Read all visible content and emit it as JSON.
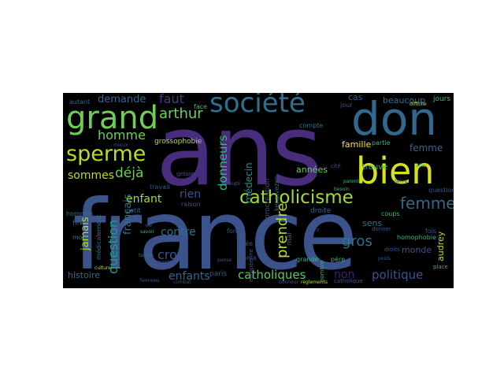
{
  "words": [
    {
      "text": "ans",
      "color": "#472d7b"
    },
    {
      "text": "france",
      "color": "#3b528b"
    },
    {
      "text": "don",
      "color": "#31688e"
    },
    {
      "text": "bien",
      "color": "#d8e219"
    },
    {
      "text": "société",
      "color": "#2c728e"
    },
    {
      "text": "grand",
      "color": "#6ece58"
    },
    {
      "text": "sperme",
      "color": "#b5de2b"
    },
    {
      "text": "catholicisme",
      "color": "#a0da39"
    },
    {
      "text": "catholiques",
      "color": "#5ec962"
    },
    {
      "text": "femmes",
      "color": "#31688e"
    },
    {
      "text": "politique",
      "color": "#3b528b"
    },
    {
      "text": "enfants",
      "color": "#31688e"
    },
    {
      "text": "gros",
      "color": "#2c728e"
    },
    {
      "text": "crois",
      "color": "#3b528b"
    },
    {
      "text": "arthur",
      "color": "#6ece58"
    },
    {
      "text": "faut",
      "color": "#443983"
    },
    {
      "text": "homme",
      "color": "#6ece58"
    },
    {
      "text": "demande",
      "color": "#31688e"
    },
    {
      "text": "enfant",
      "color": "#a0da39"
    },
    {
      "text": "sommes",
      "color": "#b5de2b"
    },
    {
      "text": "déjà",
      "color": "#6ece58"
    },
    {
      "text": "rien",
      "color": "#3b528b"
    },
    {
      "text": "contre",
      "color": "#2c728e"
    },
    {
      "text": "non",
      "color": "#481f70"
    },
    {
      "text": "sens",
      "color": "#2c728e"
    },
    {
      "text": "femme",
      "color": "#31688e"
    },
    {
      "text": "famille",
      "color": "#fde725"
    },
    {
      "text": "beaucoup",
      "color": "#2c728e"
    },
    {
      "text": "cas",
      "color": "#3b528b"
    },
    {
      "text": "jours",
      "color": "#35b779"
    },
    {
      "text": "années",
      "color": "#6ece58"
    },
    {
      "text": "prendre",
      "color": "#b5de2b"
    },
    {
      "text": "donneurs",
      "color": "#35b779"
    },
    {
      "text": "médecin",
      "color": "#21918c"
    },
    {
      "text": "question",
      "color": "#1f9e89"
    },
    {
      "text": "jamais",
      "color": "#b5de2b"
    },
    {
      "text": "français",
      "color": "#2c728e"
    },
    {
      "text": "audrey",
      "color": "#b5de2b"
    },
    {
      "text": "histoire",
      "color": "#31688e"
    },
    {
      "text": "monde",
      "color": "#3b528b"
    },
    {
      "text": "homophobie",
      "color": "#35b779"
    },
    {
      "text": "grossophobie",
      "color": "#b5de2b"
    },
    {
      "text": "trouve",
      "color": "#35b779"
    },
    {
      "text": "partie",
      "color": "#35b779"
    },
    {
      "text": "compte",
      "color": "#2c728e"
    },
    {
      "text": "coups",
      "color": "#35b779"
    },
    {
      "text": "fois",
      "color": "#3b528b"
    },
    {
      "text": "droite",
      "color": "#31688e"
    },
    {
      "text": "paris",
      "color": "#3b528b"
    },
    {
      "text": "force",
      "color": "#3b528b"
    },
    {
      "text": "mal",
      "color": "#3b528b"
    },
    {
      "text": "questions",
      "color": "#3b528b"
    },
    {
      "text": "fin",
      "color": "#3b528b"
    },
    {
      "text": "autant",
      "color": "#31688e"
    },
    {
      "text": "jour",
      "color": "#3b528b"
    },
    {
      "text": "face",
      "color": "#35b779"
    },
    {
      "text": "hommes",
      "color": "#2c728e"
    },
    {
      "text": "petit",
      "color": "#2c728e"
    },
    {
      "text": "mois",
      "color": "#2c728e"
    },
    {
      "text": "travail",
      "color": "#3b528b"
    },
    {
      "text": "raison",
      "color": "#3b528b"
    },
    {
      "text": "grande",
      "color": "#35b779"
    },
    {
      "text": "père",
      "color": "#35b779"
    },
    {
      "text": "coupl",
      "color": "#3b528b"
    },
    {
      "text": "procréation",
      "color": "#3b528b"
    },
    {
      "text": "kenalvezen",
      "color": "#31688e"
    },
    {
      "text": "médicalement",
      "color": "#2c728e"
    },
    {
      "text": "idée",
      "color": "#3b528b"
    },
    {
      "text": "pma",
      "color": "#3b528b"
    },
    {
      "text": "couples",
      "color": "#3b528b"
    },
    {
      "text": "grosse",
      "color": "#3b528b"
    },
    {
      "text": "catholique",
      "color": "#3b528b"
    },
    {
      "text": "donner",
      "color": "#3b528b"
    },
    {
      "text": "droits",
      "color": "#3b528b"
    },
    {
      "text": "place",
      "color": "#35b779"
    },
    {
      "text": "cité",
      "color": "#3b528b"
    },
    {
      "text": "européenne",
      "color": "#3b528b"
    },
    {
      "text": "nombre",
      "color": "#35b779"
    },
    {
      "text": "donneur",
      "color": "#3b528b"
    },
    {
      "text": "difficile",
      "color": "#b5de2b"
    },
    {
      "text": "mieux",
      "color": "#3b528b"
    },
    {
      "text": "besoin",
      "color": "#35b779"
    },
    {
      "text": "point",
      "color": "#3b528b"
    },
    {
      "text": "vie",
      "color": "#3b528b"
    },
    {
      "text": "temps",
      "color": "#2c728e"
    },
    {
      "text": "culture",
      "color": "#b5de2b"
    },
    {
      "text": "savoir",
      "color": "#35b779"
    },
    {
      "text": "pense",
      "color": "#3b528b"
    },
    {
      "text": "ainsi",
      "color": "#35b779"
    },
    {
      "text": "combat",
      "color": "#3b528b"
    },
    {
      "text": "règlements",
      "color": "#b5de2b"
    },
    {
      "text": "genre",
      "color": "#3b528b"
    },
    {
      "text": "poids",
      "color": "#3b528b"
    },
    {
      "text": "parent",
      "color": "#35b779"
    },
    {
      "text": "femmes",
      "color": "#3b528b"
    }
  ]
}
